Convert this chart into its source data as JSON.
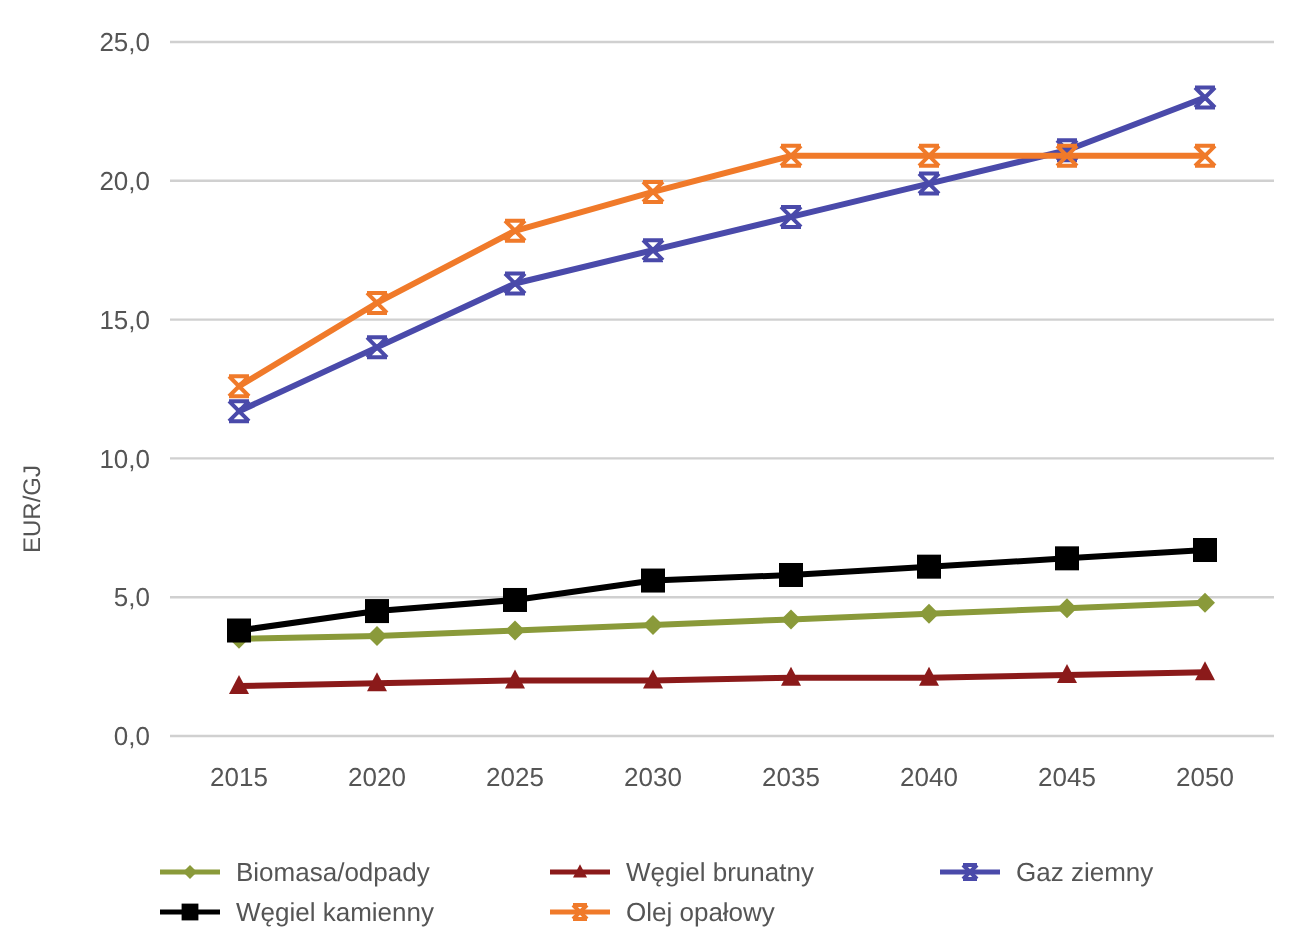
{
  "chart_data": {
    "type": "line",
    "ylabel": "EUR/GJ",
    "categories": [
      "2015",
      "2020",
      "2025",
      "2030",
      "2035",
      "2040",
      "2045",
      "2050"
    ],
    "ylim": [
      0,
      25
    ],
    "yticks": [
      {
        "value": 0,
        "label": "0,0"
      },
      {
        "value": 5,
        "label": "5,0"
      },
      {
        "value": 10,
        "label": "10,0"
      },
      {
        "value": 15,
        "label": "15,0"
      },
      {
        "value": 20,
        "label": "20,0"
      },
      {
        "value": 25,
        "label": "25,0"
      }
    ],
    "grid": "y",
    "legend": "bottom",
    "series": [
      {
        "name": "Biomasa/odpady",
        "color": "#8a9a3a",
        "marker": "diamond",
        "values": [
          3.5,
          3.6,
          3.8,
          4.0,
          4.2,
          4.4,
          4.6,
          4.8
        ]
      },
      {
        "name": "Węgiel brunatny",
        "color": "#8b1a1a",
        "marker": "triangle",
        "values": [
          1.8,
          1.9,
          2.0,
          2.0,
          2.1,
          2.1,
          2.2,
          2.3
        ]
      },
      {
        "name": "Gaz ziemny",
        "color": "#4a4aaa",
        "marker": "cross",
        "values": [
          11.7,
          14.0,
          16.3,
          17.5,
          18.7,
          19.9,
          21.1,
          23.0
        ]
      },
      {
        "name": "Węgiel kamienny",
        "color": "#000000",
        "marker": "square",
        "values": [
          3.8,
          4.5,
          4.9,
          5.6,
          5.8,
          6.1,
          6.4,
          6.7
        ]
      },
      {
        "name": "Olej opałowy",
        "color": "#f07a2a",
        "marker": "cross",
        "values": [
          12.6,
          15.6,
          18.2,
          19.6,
          20.9,
          20.9,
          20.9,
          20.9
        ]
      }
    ]
  }
}
